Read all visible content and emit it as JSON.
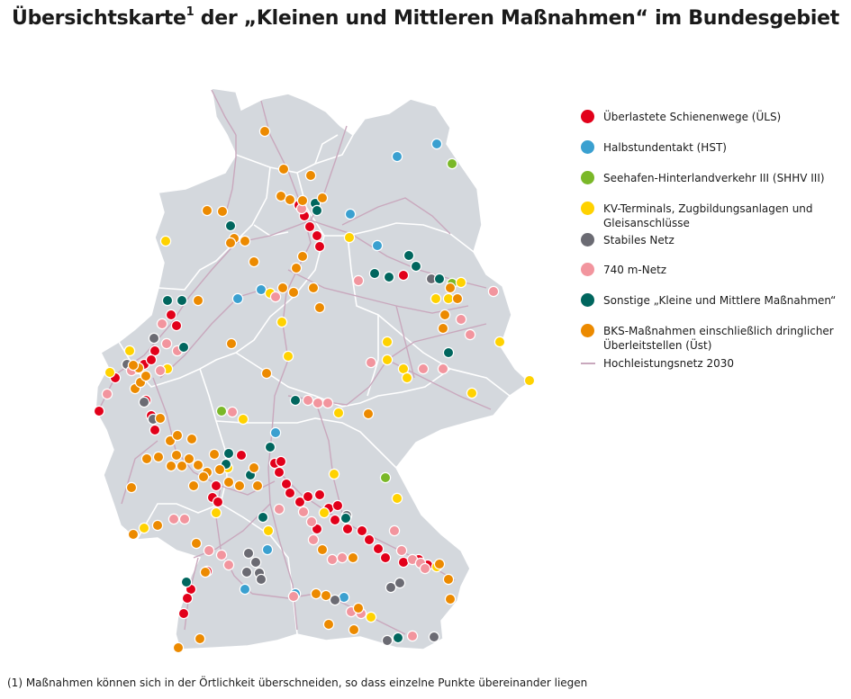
{
  "title": "Übersichtskarte",
  "title_sup": "1",
  "title_rest": " der „Kleinen und Mittleren Maßnahmen“  im Bundesgebiet",
  "legend": [
    {
      "key": "uls",
      "label": "Überlastete Schienenwege (ÜLS)",
      "color": "#e2001a"
    },
    {
      "key": "hst",
      "label": "Halbstundentakt (HST)",
      "color": "#3aa0d0"
    },
    {
      "key": "shhv",
      "label": "Seehafen-Hinterlandverkehr III (SHHV III)",
      "color": "#7ab828"
    },
    {
      "key": "kv",
      "label": "KV-Terminals, Zugbildungsanlagen und Gleisanschlüsse",
      "color": "#ffd200"
    },
    {
      "key": "sn",
      "label": "Stabiles Netz",
      "color": "#6b6b73"
    },
    {
      "key": "m740",
      "label": "740 m-Netz",
      "color": "#f2959e"
    },
    {
      "key": "skm",
      "label": "Sonstige „Kleine und Mittlere Maßnahmen“",
      "color": "#00665e"
    },
    {
      "key": "bks",
      "label": "BKS-Maßnahmen einschließlich dringlicher Überleitstellen (Üst)",
      "color": "#ec8a00"
    },
    {
      "key": "hln",
      "label": "Hochleistungsnetz 2030",
      "color": "#c9a8bd"
    }
  ],
  "map": {
    "land_color": "#d4d8dd",
    "border_color": "#ffffff",
    "network_color": "#c9a8bd"
  },
  "footnote": "(1) Maßnahmen können sich in der Örtlichkeit überschneiden, so dass einzelne Punkte übereinander liegen"
}
